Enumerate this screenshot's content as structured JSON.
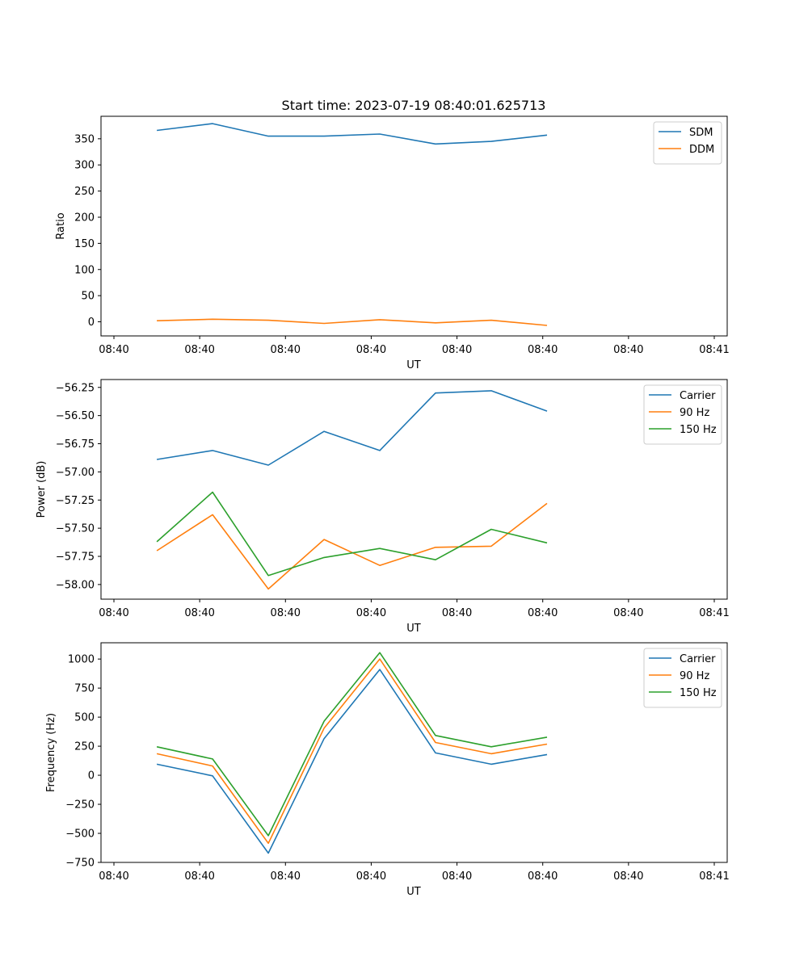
{
  "chart_data": [
    {
      "type": "line",
      "title": "Start time: 2023-07-19 08:40:01.625713",
      "xlabel": "UT",
      "ylabel": "Ratio",
      "x_tick_labels": [
        "08:40",
        "08:40",
        "08:40",
        "08:40",
        "08:40",
        "08:40",
        "08:40",
        "08:41"
      ],
      "xlim": [
        0,
        7
      ],
      "ylim": [
        -27,
        393
      ],
      "yticks": [
        0,
        50,
        100,
        150,
        200,
        250,
        300,
        350
      ],
      "ytick_labels": [
        "0",
        "50",
        "100",
        "150",
        "200",
        "250",
        "300",
        "350"
      ],
      "legend_position": "top-right",
      "x": [
        0.5,
        1.15,
        1.8,
        2.45,
        3.1,
        3.75,
        4.4,
        5.05
      ],
      "series": [
        {
          "name": "SDM",
          "color": "#1f77b4",
          "values": [
            366,
            379,
            355,
            355,
            359,
            340,
            345,
            357
          ]
        },
        {
          "name": "DDM",
          "color": "#ff7f0e",
          "values": [
            2,
            5,
            3,
            -3,
            4,
            -2,
            3,
            -7
          ]
        }
      ]
    },
    {
      "type": "line",
      "title": "",
      "xlabel": "UT",
      "ylabel": "Power (dB)",
      "x_tick_labels": [
        "08:40",
        "08:40",
        "08:40",
        "08:40",
        "08:40",
        "08:40",
        "08:40",
        "08:41"
      ],
      "xlim": [
        0,
        7
      ],
      "ylim": [
        -58.13,
        -56.18
      ],
      "yticks": [
        -58.0,
        -57.75,
        -57.5,
        -57.25,
        -57.0,
        -56.75,
        -56.5,
        -56.25
      ],
      "ytick_labels": [
        "−58.00",
        "−57.75",
        "−57.50",
        "−57.25",
        "−57.00",
        "−56.75",
        "−56.50",
        "−56.25"
      ],
      "legend_position": "top-right",
      "x": [
        0.5,
        1.15,
        1.8,
        2.45,
        3.1,
        3.75,
        4.4,
        5.05
      ],
      "series": [
        {
          "name": "Carrier",
          "color": "#1f77b4",
          "values": [
            -56.89,
            -56.81,
            -56.94,
            -56.64,
            -56.81,
            -56.3,
            -56.28,
            -56.46
          ]
        },
        {
          "name": "90 Hz",
          "color": "#ff7f0e",
          "values": [
            -57.7,
            -57.38,
            -58.04,
            -57.6,
            -57.83,
            -57.67,
            -57.66,
            -57.28
          ]
        },
        {
          "name": "150 Hz",
          "color": "#2ca02c",
          "values": [
            -57.62,
            -57.18,
            -57.92,
            -57.76,
            -57.68,
            -57.78,
            -57.51,
            -57.63
          ]
        }
      ]
    },
    {
      "type": "line",
      "title": "",
      "xlabel": "UT",
      "ylabel": "Frequency (Hz)",
      "x_tick_labels": [
        "08:40",
        "08:40",
        "08:40",
        "08:40",
        "08:40",
        "08:40",
        "08:40",
        "08:41"
      ],
      "xlim": [
        0,
        7
      ],
      "ylim": [
        -750,
        1140
      ],
      "yticks": [
        -750,
        -500,
        -250,
        0,
        250,
        500,
        750,
        1000
      ],
      "ytick_labels": [
        "−750",
        "−500",
        "−250",
        "0",
        "250",
        "500",
        "750",
        "1000"
      ],
      "legend_position": "top-right",
      "x": [
        0.5,
        1.15,
        1.8,
        2.45,
        3.1,
        3.75,
        4.4,
        5.05
      ],
      "series": [
        {
          "name": "Carrier",
          "color": "#1f77b4",
          "values": [
            95,
            -5,
            -670,
            315,
            910,
            192,
            95,
            178
          ]
        },
        {
          "name": "90 Hz",
          "color": "#ff7f0e",
          "values": [
            185,
            80,
            -585,
            405,
            1000,
            282,
            185,
            268
          ]
        },
        {
          "name": "150 Hz",
          "color": "#2ca02c",
          "values": [
            245,
            140,
            -520,
            465,
            1055,
            342,
            245,
            328
          ]
        }
      ]
    }
  ]
}
